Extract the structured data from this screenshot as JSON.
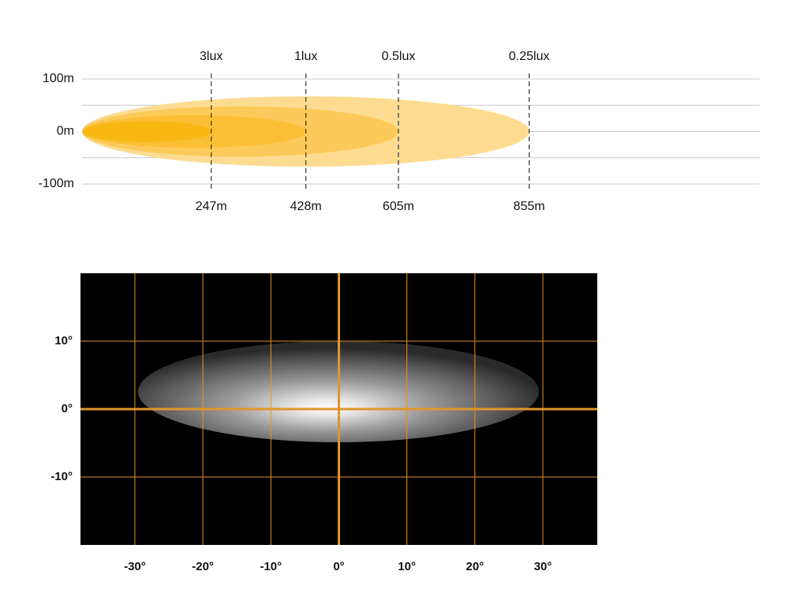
{
  "chart_data": [
    {
      "type": "beam",
      "xlim": [
        0,
        1296
      ],
      "ylim": [
        -100,
        100
      ],
      "yticks": [
        {
          "value": 100,
          "label": "100m"
        },
        {
          "value": 0,
          "label": "0m"
        },
        {
          "value": -100,
          "label": "-100m"
        }
      ],
      "minor_yticks": [
        50,
        -50
      ],
      "grid": true,
      "series": [
        {
          "name": "3lux",
          "color": "#f9b712",
          "value": 247,
          "value_label": "247m",
          "half_width": 20
        },
        {
          "name": "1lux",
          "color": "#fbbf35",
          "value": 428,
          "value_label": "428m",
          "half_width": 31
        },
        {
          "name": "0.5lux",
          "color": "#fcca5a",
          "value": 605,
          "value_label": "605m",
          "half_width": 48
        },
        {
          "name": "0.25lux",
          "color": "#fddc92",
          "value": 855,
          "value_label": "855m",
          "half_width": 67
        }
      ]
    },
    {
      "type": "beam-pattern",
      "xlim": [
        -38,
        38
      ],
      "ylim": [
        -20,
        20
      ],
      "xticks": [
        {
          "value": -30,
          "label": "-30°"
        },
        {
          "value": -20,
          "label": "-20°"
        },
        {
          "value": -10,
          "label": "-10°"
        },
        {
          "value": 0,
          "label": "0°"
        },
        {
          "value": 10,
          "label": "10°"
        },
        {
          "value": 20,
          "label": "20°"
        },
        {
          "value": 30,
          "label": "30°"
        }
      ],
      "yticks": [
        {
          "value": 10,
          "label": "10°"
        },
        {
          "value": 0,
          "label": "0°"
        },
        {
          "value": -10,
          "label": "-10°"
        }
      ],
      "grid_color": "#e0962a"
    }
  ]
}
